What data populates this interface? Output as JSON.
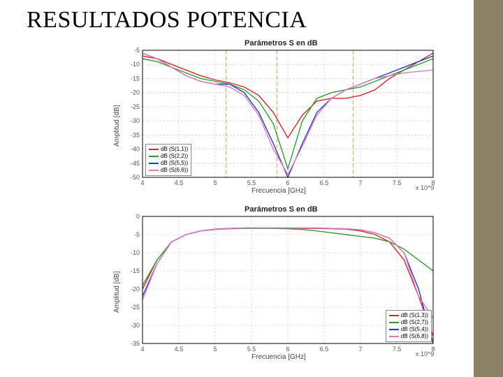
{
  "page": {
    "title": "RESULTADOS POTENCIA",
    "sidebar_color": "#8b8265",
    "background": "#ffffff"
  },
  "chart1": {
    "type": "line",
    "title": "Parámetros S en dB",
    "title_fontsize": 11,
    "xlabel": "Frecuencia [GHz]",
    "ylabel": "Amplitud [dB]",
    "label_fontsize": 10,
    "x_ticks": [
      4,
      4.5,
      5,
      5.5,
      6,
      6.5,
      7,
      7.5,
      8
    ],
    "y_ticks": [
      -50,
      -45,
      -40,
      -35,
      -30,
      -25,
      -20,
      -15,
      -10,
      -5
    ],
    "xlim": [
      4,
      8
    ],
    "ylim": [
      -50,
      -5
    ],
    "x_exp": "x 10^9",
    "grid_color": "#bbbbbb",
    "grid_dash": "2,3",
    "plot_bg": "#ffffff",
    "border_color": "#000000",
    "ref_lines_x": [
      5.15,
      5.85,
      6.9
    ],
    "ref_line_color": "#d6a24a",
    "ref_line_dash": "6,3",
    "legend": {
      "pos": "bottom-left",
      "items": [
        {
          "label": "dB (S(1,1))",
          "color": "#d62728"
        },
        {
          "label": "dB (S(2,2))",
          "color": "#2ca02c"
        },
        {
          "label": "dB (S(5,5))",
          "color": "#1f3fbf"
        },
        {
          "label": "dB (S(6,6))",
          "color": "#e377c2"
        }
      ]
    },
    "series": [
      {
        "name": "S11",
        "color": "#d62728",
        "width": 1.4,
        "x": [
          4,
          4.2,
          4.4,
          4.6,
          4.8,
          5,
          5.2,
          5.4,
          5.6,
          5.8,
          6,
          6.2,
          6.4,
          6.6,
          6.8,
          7,
          7.2,
          7.4,
          7.6,
          7.8,
          8
        ],
        "y": [
          -7,
          -8,
          -10,
          -12,
          -14,
          -15.5,
          -16.5,
          -18,
          -21,
          -27,
          -36,
          -28,
          -23,
          -22,
          -22,
          -21,
          -19,
          -15,
          -12,
          -9,
          -6
        ]
      },
      {
        "name": "S22",
        "color": "#2ca02c",
        "width": 1.4,
        "x": [
          4,
          4.2,
          4.4,
          4.6,
          4.8,
          5,
          5.2,
          5.4,
          5.6,
          5.8,
          6,
          6.2,
          6.4,
          6.6,
          6.8,
          7,
          7.2,
          7.4,
          7.6,
          7.8,
          8
        ],
        "y": [
          -8,
          -9,
          -11,
          -13,
          -15,
          -16,
          -17,
          -19,
          -23,
          -31,
          -47,
          -30,
          -22,
          -20,
          -19,
          -18,
          -16,
          -14,
          -12,
          -10,
          -8
        ]
      },
      {
        "name": "S55",
        "color": "#1f3fbf",
        "width": 1.4,
        "x": [
          4,
          4.2,
          4.4,
          4.6,
          4.8,
          5,
          5.2,
          5.4,
          5.6,
          5.8,
          6,
          6.2,
          6.4,
          6.6,
          6.8,
          7,
          7.2,
          7.4,
          7.6,
          7.8,
          8
        ],
        "y": [
          -6,
          -8,
          -11,
          -14,
          -16,
          -17,
          -17,
          -20,
          -27,
          -38,
          -50,
          -38,
          -27,
          -22,
          -19,
          -17,
          -15,
          -13,
          -11,
          -9,
          -7
        ]
      },
      {
        "name": "S66",
        "color": "#e377c2",
        "width": 1.4,
        "x": [
          4,
          4.2,
          4.4,
          4.6,
          4.8,
          5,
          5.2,
          5.4,
          5.6,
          5.8,
          6,
          6.2,
          6.4,
          6.6,
          6.8,
          7,
          7.2,
          7.4,
          7.6,
          7.8,
          8
        ],
        "y": [
          -6,
          -8,
          -11,
          -14,
          -16,
          -17,
          -18,
          -21,
          -28,
          -40,
          -49,
          -39,
          -28,
          -22,
          -19,
          -17,
          -15,
          -14,
          -13,
          -12.5,
          -12
        ]
      }
    ]
  },
  "chart2": {
    "type": "line",
    "title": "Parámetros S en dB",
    "title_fontsize": 11,
    "xlabel": "Frecuencia [GHz]",
    "ylabel": "Amplitud [dB]",
    "label_fontsize": 10,
    "x_ticks": [
      4,
      4.5,
      5,
      5.5,
      6,
      6.5,
      7,
      7.5,
      8
    ],
    "y_ticks": [
      -35,
      -30,
      -25,
      -20,
      -15,
      -10,
      -5,
      0
    ],
    "xlim": [
      4,
      8
    ],
    "ylim": [
      -35,
      0
    ],
    "x_exp": "x 10^9",
    "grid_color": "#bbbbbb",
    "grid_dash": "2,3",
    "plot_bg": "#ffffff",
    "border_color": "#000000",
    "legend": {
      "pos": "bottom-right",
      "items": [
        {
          "label": "dB (S(1,3))",
          "color": "#d62728"
        },
        {
          "label": "dB (S(2,7))",
          "color": "#2ca02c"
        },
        {
          "label": "dB (S(5,4))",
          "color": "#1f3fbf"
        },
        {
          "label": "dB (S(6,8))",
          "color": "#e377c2"
        }
      ]
    },
    "series": [
      {
        "name": "S13",
        "color": "#d62728",
        "width": 1.4,
        "x": [
          4,
          4.2,
          4.4,
          4.6,
          4.8,
          5,
          5.2,
          5.4,
          5.6,
          5.8,
          6,
          6.2,
          6.4,
          6.6,
          6.8,
          7,
          7.2,
          7.4,
          7.6,
          7.8,
          8
        ],
        "y": [
          -20,
          -12,
          -7,
          -5,
          -4,
          -3.5,
          -3.3,
          -3.2,
          -3.2,
          -3.2,
          -3.2,
          -3.3,
          -3.3,
          -3.4,
          -3.5,
          -4,
          -5,
          -7,
          -12,
          -22,
          -33
        ]
      },
      {
        "name": "S27",
        "color": "#2ca02c",
        "width": 1.4,
        "x": [
          4,
          4.2,
          4.4,
          4.6,
          4.8,
          5,
          5.2,
          5.4,
          5.6,
          5.8,
          6,
          6.2,
          6.4,
          6.6,
          6.8,
          7,
          7.2,
          7.4,
          7.6,
          7.8,
          8
        ],
        "y": [
          -19,
          -12,
          -7,
          -5,
          -4,
          -3.6,
          -3.4,
          -3.3,
          -3.3,
          -3.3,
          -3.4,
          -3.6,
          -4,
          -4.5,
          -5,
          -5.5,
          -6,
          -7,
          -9,
          -12,
          -15
        ]
      },
      {
        "name": "S54",
        "color": "#1f3fbf",
        "width": 1.4,
        "x": [
          4,
          4.2,
          4.4,
          4.6,
          4.8,
          5,
          5.2,
          5.4,
          5.6,
          5.8,
          6,
          6.2,
          6.4,
          6.6,
          6.8,
          7,
          7.2,
          7.4,
          7.6,
          7.8,
          8
        ],
        "y": [
          -22,
          -13,
          -7,
          -5,
          -4,
          -3.5,
          -3.3,
          -3.2,
          -3.2,
          -3.2,
          -3.2,
          -3.2,
          -3.2,
          -3.3,
          -3.4,
          -3.7,
          -4.5,
          -6,
          -10,
          -20,
          -35
        ]
      },
      {
        "name": "S68",
        "color": "#e377c2",
        "width": 1.4,
        "x": [
          4,
          4.2,
          4.4,
          4.6,
          4.8,
          5,
          5.2,
          5.4,
          5.6,
          5.8,
          6,
          6.2,
          6.4,
          6.6,
          6.8,
          7,
          7.2,
          7.4,
          7.6,
          7.8,
          8
        ],
        "y": [
          -23,
          -13,
          -7,
          -5,
          -4,
          -3.5,
          -3.3,
          -3.2,
          -3.2,
          -3.2,
          -3.2,
          -3.2,
          -3.2,
          -3.3,
          -3.4,
          -3.7,
          -4.5,
          -6,
          -10,
          -22,
          -28
        ]
      }
    ]
  }
}
